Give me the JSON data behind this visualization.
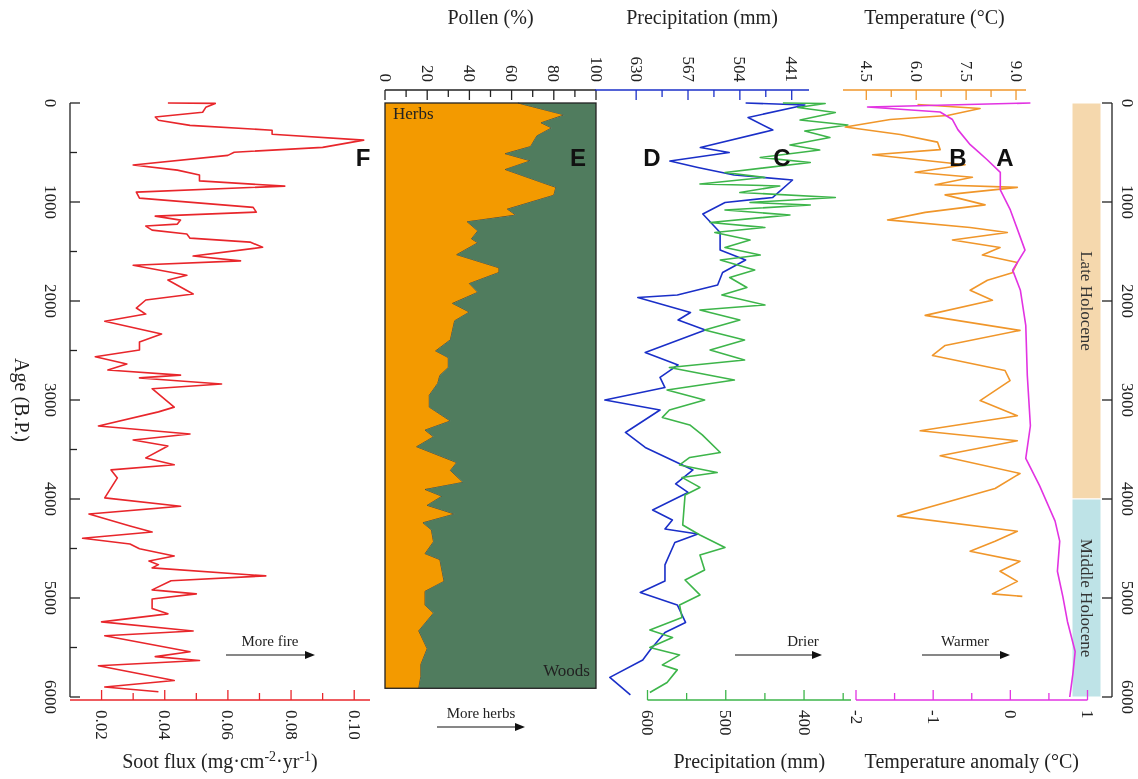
{
  "chart_data": [
    {
      "type": "line",
      "orientation": "horizontal",
      "xlabel": "Soot flux (mg·cm$^{-2}$·yr$^{-1}$)",
      "ylabel": "Age (B.P.)",
      "xlim": [
        0.01,
        0.105
      ],
      "xticks": [
        {
          "value": 0.02,
          "label": "0.02"
        },
        {
          "value": 0.03,
          "label": null
        },
        {
          "value": 0.04,
          "label": "0.04"
        },
        {
          "value": 0.05,
          "label": null
        },
        {
          "value": 0.06,
          "label": "0.06"
        },
        {
          "value": 0.07,
          "label": null
        },
        {
          "value": 0.08,
          "label": "0.08"
        },
        {
          "value": 0.09,
          "label": null
        },
        {
          "value": 0.1,
          "label": "0.10"
        }
      ],
      "ylim": [
        6000,
        0
      ],
      "yticks": [
        0,
        {
          "value": 500,
          "label": null
        },
        1000,
        {
          "value": 1500,
          "label": null
        },
        2000,
        {
          "value": 2500,
          "label": null
        },
        3000,
        {
          "value": 3500,
          "label": null
        },
        4000,
        {
          "value": 4500,
          "label": null
        },
        5000,
        {
          "value": 5500,
          "label": null
        },
        6000
      ],
      "series": [
        {
          "color": "#e8262b",
          "x": [
            0,
            4,
            44,
            93,
            141,
            174,
            226,
            275,
            315,
            375,
            448,
            497,
            529,
            626,
            678,
            727,
            787,
            840,
            900,
            961,
            1054,
            1102,
            1143,
            1183,
            1223,
            1243,
            1284,
            1324,
            1365,
            1405,
            1457,
            1546,
            1595,
            1639,
            1740,
            1788,
            1930,
            1990,
            2071,
            2132,
            2204,
            2334,
            2414,
            2495,
            2563,
            2636,
            2697,
            2749,
            2777,
            2838,
            2886,
            3072,
            3120,
            3262,
            3343,
            3404,
            3464,
            3585,
            3654,
            3706,
            3787,
            3989,
            4074,
            4151,
            4272,
            4333,
            4397,
            4454,
            4502,
            4575,
            4627,
            4663,
            4696,
            4777,
            4825,
            4918,
            4958,
            5010,
            5107,
            5160,
            5241,
            5333,
            5382,
            5543,
            5592,
            5632,
            5685,
            5834,
            5899,
            5947
          ],
          "values": [
            0.041,
            0.056,
            0.053,
            0.052,
            0.037,
            0.038,
            0.048,
            0.074,
            0.074,
            0.103,
            0.09,
            0.062,
            0.06,
            0.03,
            0.044,
            0.051,
            0.051,
            0.078,
            0.031,
            0.032,
            0.068,
            0.069,
            0.037,
            0.045,
            0.044,
            0.034,
            0.036,
            0.047,
            0.048,
            0.067,
            0.071,
            0.049,
            0.064,
            0.03,
            0.047,
            0.041,
            0.049,
            0.034,
            0.031,
            0.034,
            0.021,
            0.039,
            0.032,
            0.032,
            0.018,
            0.028,
            0.022,
            0.045,
            0.032,
            0.058,
            0.036,
            0.043,
            0.038,
            0.019,
            0.048,
            0.03,
            0.041,
            0.034,
            0.043,
            0.023,
            0.025,
            0.021,
            0.045,
            0.016,
            0.029,
            0.036,
            0.014,
            0.029,
            0.032,
            0.043,
            0.035,
            0.038,
            0.036,
            0.072,
            0.042,
            0.036,
            0.05,
            0.036,
            0.036,
            0.041,
            0.02,
            0.049,
            0.021,
            0.048,
            0.037,
            0.051,
            0.019,
            0.043,
            0.021,
            0.038
          ]
        }
      ],
      "annotations": [
        "More fire",
        "F"
      ]
    },
    {
      "type": "area",
      "orientation": "horizontal",
      "stacked": true,
      "tick_labels": "x",
      "x2label": "Pollen (%)",
      "x2lim": [
        0,
        100
      ],
      "x2ticks": [
        0,
        {
          "value": 10,
          "label": null
        },
        20,
        {
          "value": 30,
          "label": null
        },
        40,
        {
          "value": 50,
          "label": null
        },
        60,
        {
          "value": 70,
          "label": null
        },
        80,
        {
          "value": 90,
          "label": null
        },
        100
      ],
      "ylim": [
        6000,
        0
      ],
      "x": [
        0,
        120,
        200,
        252,
        332,
        440,
        512,
        584,
        672,
        800,
        852,
        932,
        1072,
        1132,
        1200,
        1292,
        1372,
        1412,
        1532,
        1664,
        1712,
        1824,
        1912,
        2024,
        2112,
        2200,
        2392,
        2504,
        2572,
        2672,
        2752,
        2832,
        2952,
        3072,
        3212,
        3304,
        3372,
        3472,
        3632,
        3712,
        3832,
        3904,
        3972,
        4064,
        4152,
        4240,
        4312,
        4432,
        4552,
        4612,
        4832,
        4932,
        5072,
        5152,
        5332,
        5512,
        5672,
        5792,
        5912
      ],
      "series": [
        {
          "name": "Herbs",
          "color": "#f39a00",
          "axis": "x2",
          "values": [
            63,
            85,
            74,
            79,
            72,
            69,
            57,
            69,
            57,
            74,
            81,
            80,
            58,
            62,
            39,
            44,
            41,
            44,
            34,
            54,
            54,
            40,
            44,
            32,
            40,
            33,
            31,
            24,
            30,
            30,
            26,
            25,
            21,
            21,
            31,
            19,
            23,
            15,
            34,
            31,
            37,
            19,
            27,
            20,
            33,
            18,
            22,
            23,
            19,
            26,
            28,
            19,
            19,
            23,
            16,
            20,
            17,
            17,
            16
          ]
        },
        {
          "name": "Woods",
          "color": "#507c5e",
          "axis": "x2",
          "values": [
            37,
            15,
            26,
            21,
            28,
            31,
            43,
            31,
            43,
            26,
            19,
            20,
            42,
            38,
            61,
            56,
            59,
            56,
            66,
            46,
            46,
            60,
            56,
            68,
            60,
            67,
            69,
            76,
            70,
            70,
            74,
            75,
            79,
            79,
            69,
            81,
            77,
            85,
            66,
            69,
            63,
            81,
            73,
            80,
            67,
            82,
            78,
            77,
            81,
            74,
            72,
            81,
            81,
            77,
            84,
            80,
            83,
            83,
            84
          ]
        }
      ],
      "annotations": [
        "More herbs",
        "E"
      ]
    },
    {
      "type": "line",
      "orientation": "horizontal",
      "tick_labels": "x",
      "xlabel": "Precipitation (mm)",
      "x2label": "Precipitation (mm)",
      "xlim": [
        600,
        340
      ],
      "xticks": [
        600,
        {
          "value": 550,
          "label": null
        },
        500,
        {
          "value": 450,
          "label": null
        },
        400,
        {
          "value": 350,
          "label": null
        }
      ],
      "x2lim": [
        680,
        420
      ],
      "x2ticks": [
        630,
        {
          "value": 598.5,
          "label": null
        },
        567,
        {
          "value": 535.5,
          "label": null
        },
        504,
        {
          "value": 472.5,
          "label": null
        },
        441
      ],
      "ylim": [
        6000,
        0
      ],
      "series": [
        {
          "color": "#1a2fc8",
          "axis": "x2",
          "x": [
            0,
            20,
            146,
            273,
            449,
            500,
            586,
            651,
            727,
            778,
            954,
            1005,
            1121,
            1308,
            1485,
            1586,
            1712,
            1838,
            1939,
            1965,
            2116,
            2192,
            2293,
            2520,
            2646,
            2772,
            2874,
            3000,
            3101,
            3328,
            3479,
            3707,
            3848,
            3934,
            4111,
            4212,
            4303,
            4353,
            4439,
            4666,
            4828,
            4944,
            5070,
            5247,
            5348,
            5525,
            5626,
            5802,
            5979
          ],
          "values": [
            497,
            425,
            494,
            464,
            552,
            517,
            589,
            555,
            511,
            440,
            464,
            522,
            549,
            528,
            528,
            497,
            525,
            531,
            580,
            628,
            564,
            579,
            546,
            619,
            579,
            601,
            595,
            668,
            601,
            643,
            619,
            561,
            582,
            567,
            610,
            586,
            595,
            555,
            583,
            595,
            595,
            625,
            580,
            570,
            595,
            613,
            622,
            662,
            637
          ]
        },
        {
          "color": "#3db54a",
          "x": [
            0,
            5,
            45,
            96,
            172,
            222,
            283,
            348,
            424,
            475,
            550,
            601,
            702,
            752,
            818,
            838,
            904,
            954,
            1005,
            1030,
            1081,
            1131,
            1207,
            1257,
            1308,
            1384,
            1459,
            1535,
            1586,
            1687,
            1762,
            1863,
            1939,
            2040,
            2091,
            2192,
            2293,
            2394,
            2495,
            2596,
            2671,
            2798,
            2899,
            3000,
            3101,
            3176,
            3252,
            3353,
            3530,
            3580,
            3656,
            3732,
            3782,
            3883,
            3959,
            4262,
            4363,
            4489,
            4565,
            4717,
            4818,
            4969,
            5070,
            5196,
            5323,
            5398,
            5499,
            5575,
            5676,
            5726,
            5853,
            5954
          ],
          "values": [
            427,
            373,
            408,
            360,
            405,
            344,
            399,
            367,
            418,
            380,
            456,
            392,
            501,
            450,
            533,
            431,
            482,
            360,
            469,
            392,
            501,
            418,
            520,
            450,
            514,
            469,
            501,
            456,
            507,
            463,
            495,
            473,
            505,
            450,
            533,
            482,
            527,
            476,
            520,
            476,
            572,
            489,
            575,
            527,
            572,
            581,
            546,
            530,
            507,
            546,
            559,
            511,
            556,
            533,
            552,
            555,
            533,
            501,
            533,
            527,
            552,
            533,
            559,
            556,
            597,
            568,
            597,
            559,
            581,
            562,
            575,
            597
          ]
        }
      ],
      "annotations": [
        "Drier",
        "D",
        "C"
      ]
    },
    {
      "type": "line",
      "orientation": "horizontal",
      "xlabel": "Temperature anomaly (°C)",
      "x2label": "Temperature (°C)",
      "xlim": [
        -2,
        1
      ],
      "xticks": [
        -2,
        {
          "value": -1.5,
          "label": null
        },
        -1,
        {
          "value": -0.5,
          "label": null
        },
        0,
        {
          "value": 0.5,
          "label": null
        },
        1
      ],
      "x2lim": [
        3.8,
        9.3
      ],
      "x2ticks": [
        {
          "value": 4.5,
          "label": "4.5"
        },
        {
          "value": 5.25,
          "label": null
        },
        {
          "value": 6,
          "label": "6.0"
        },
        {
          "value": 6.75,
          "label": null
        },
        {
          "value": 7.5,
          "label": "7.5"
        },
        {
          "value": 8.25,
          "label": null
        },
        {
          "value": 9,
          "label": "9.0"
        }
      ],
      "ylim": [
        6000,
        0
      ],
      "yticks": [
        0,
        1000,
        2000,
        3000,
        4000,
        5000,
        6000
      ],
      "series": [
        {
          "color": "#f0962a",
          "axis": "x2",
          "x": [
            15,
            56,
            127,
            167,
            243,
            319,
            395,
            471,
            522,
            624,
            700,
            750,
            826,
            852,
            928,
            1029,
            1105,
            1181,
            1257,
            1308,
            1384,
            1460,
            1536,
            1612,
            1714,
            1790,
            1891,
            1993,
            2145,
            2297,
            2449,
            2550,
            2702,
            2804,
            3006,
            3159,
            3311,
            3412,
            3564,
            3742,
            3894,
            4173,
            4325,
            4426,
            4528,
            4629,
            4730,
            4832,
            4958,
            4984
          ],
          "values": [
            6.04,
            7.92,
            6.94,
            5.22,
            3.87,
            5.52,
            6.64,
            6.72,
            4.69,
            7.47,
            5.97,
            7.69,
            6.57,
            9.04,
            6.87,
            8.07,
            6.27,
            5.14,
            7.62,
            8.74,
            7.09,
            8.52,
            7.99,
            9.04,
            8.89,
            8.14,
            7.62,
            8.29,
            6.27,
            9.12,
            6.87,
            6.49,
            8.67,
            8.82,
            7.92,
            9.04,
            6.12,
            9.04,
            6.72,
            9.12,
            8.37,
            5.44,
            9.04,
            8.37,
            7.62,
            9.12,
            8.52,
            9.04,
            8.29,
            9.19
          ]
        },
        {
          "color": "#e233e2",
          "x": [
            0,
            40,
            91,
            167,
            269,
            421,
            497,
            573,
            700,
            877,
            1080,
            1486,
            1688,
            1891,
            2246,
            2753,
            3260,
            3590,
            3868,
            4223,
            4426,
            4730,
            4984,
            5237,
            5541,
            5770,
            6000
          ],
          "values": [
            0.26,
            -1.85,
            -0.91,
            -0.75,
            -0.68,
            -0.52,
            -0.41,
            -0.3,
            -0.13,
            -0.13,
            0.0,
            0.19,
            0.03,
            0.13,
            0.2,
            0.22,
            0.26,
            0.2,
            0.38,
            0.58,
            0.64,
            0.61,
            0.68,
            0.74,
            0.84,
            0.81,
            0.77
          ]
        }
      ],
      "bands": [
        {
          "axis": "y",
          "from": 0,
          "to": 4000,
          "label": "Late Holocene",
          "color": "#f5d8ad"
        },
        {
          "axis": "y",
          "from": 4000,
          "to": 6000,
          "label": "Middle Holocene",
          "color": "#bee3e7"
        }
      ],
      "annotations": [
        "Warmer",
        "B",
        "A"
      ]
    }
  ]
}
